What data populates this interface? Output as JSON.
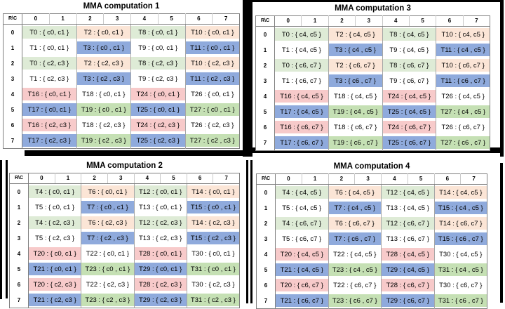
{
  "page": {
    "background": "#ffffff",
    "frame_color": "#000000"
  },
  "palette": {
    "green_light": "#DEEBD6",
    "peach": "#FBE5D6",
    "white": "#FFFFFF",
    "blue": "#8FAADC",
    "pink": "#F7CACA",
    "green": "#C5E0B4",
    "border_dark": "#7F7F7F",
    "border_mid": "#A6A6A6",
    "text": "#000000"
  },
  "grid": {
    "corner_label": "R\\C",
    "col_headers": [
      "0",
      "1",
      "2",
      "3",
      "4",
      "5",
      "6",
      "7"
    ],
    "row_headers": [
      "0",
      "1",
      "2",
      "3",
      "4",
      "5",
      "6",
      "7"
    ],
    "row_colors": [
      [
        "green_light",
        "peach",
        "green_light",
        "peach"
      ],
      [
        "white",
        "blue",
        "white",
        "blue"
      ],
      [
        "green_light",
        "peach",
        "green_light",
        "peach"
      ],
      [
        "white",
        "blue",
        "white",
        "blue"
      ],
      [
        "pink",
        "white",
        "pink",
        "white"
      ],
      [
        "blue",
        "green",
        "blue",
        "green"
      ],
      [
        "pink",
        "white",
        "pink",
        "white"
      ],
      [
        "blue",
        "green",
        "blue",
        "green"
      ]
    ]
  },
  "tables": [
    {
      "title": "MMA computation 1",
      "cells": [
        [
          "T0 : { c0, c1 }",
          "T2 : { c0, c1 }",
          "T8 : { c0, c1 }",
          "T10 : { c0, c1 }"
        ],
        [
          "T1 : { c0, c1 }",
          "T3 : { c0 , c1 }",
          "T9 : { c0, c1 }",
          "T11 : { c0 , c1 }"
        ],
        [
          "T0 : { c2, c3 }",
          "T2 : { c2, c3 }",
          "T8 : { c2, c3 }",
          "T10 : { c2, c3 }"
        ],
        [
          "T1 : { c2, c3 }",
          "T3 : { c2 , c3 }",
          "T9 : { c2, c3 }",
          "T11 : { c2 , c3 }"
        ],
        [
          "T16 : { c0, c1 }",
          "T18 : { c0, c1 }",
          "T24 : { c0, c1 }",
          "T26 : { c0, c1 }"
        ],
        [
          "T17 : { c0, c1 }",
          "T19 : { c0 , c1 }",
          "T25 : { c0, c1 }",
          "T27 : { c0 , c1 }"
        ],
        [
          "T16 : { c2, c3 }",
          "T18 : { c2, c3 }",
          "T24 : { c2, c3 }",
          "T26 : { c2, c3 }"
        ],
        [
          "T17 : { c2, c3 }",
          "T19 : { c2 , c3 }",
          "T25 : { c2, c3 }",
          "T27 : { c2 , c3 }"
        ]
      ]
    },
    {
      "title": "MMA computation 2",
      "cells": [
        [
          "T4 : { c0, c1 }",
          "T6 : { c0, c1 }",
          "T12 : { c0, c1 }",
          "T14 : { c0, c1 }"
        ],
        [
          "T5 : { c0, c1 }",
          "T7 : { c0 , c1 }",
          "T13 : { c0, c1 }",
          "T15 : { c0 , c1 }"
        ],
        [
          "T4 : { c2, c3 }",
          "T6 : { c2, c3 }",
          "T12 : { c2, c3 }",
          "T14 : { c2, c3 }"
        ],
        [
          "T5 : { c2, c3 }",
          "T7 : { c2 , c3 }",
          "T13 : { c2, c3 }",
          "T15 : { c2 , c3 }"
        ],
        [
          "T20 : { c0, c1 }",
          "T22 : { c0, c1 }",
          "T28 : { c0, c1 }",
          "T30 : { c0, c1 }"
        ],
        [
          "T21 : { c0, c1 }",
          "T23 : { c0 , c1 }",
          "T29 : { c0, c1 }",
          "T31 : { c0 , c1 }"
        ],
        [
          "T20 : { c2, c3 }",
          "T22 : { c2, c3 }",
          "T28 : { c2, c3 }",
          "T30 : { c2, c3 }"
        ],
        [
          "T21 : { c2, c3 }",
          "T23 : { c2 , c3 }",
          "T29 : { c2, c3 }",
          "T31 : { c2 , c3 }"
        ]
      ]
    },
    {
      "title": "MMA computation 3",
      "cells": [
        [
          "T0 : { c4, c5 }",
          "T2 : { c4, c5 }",
          "T8 : { c4, c5 }",
          "T10 : { c4, c5 }"
        ],
        [
          "T1 : { c4, c5 }",
          "T3 : { c4 , c5 }",
          "T9 : { c4, c5 }",
          "T11 : { c4 , c5 }"
        ],
        [
          "T0 : { c6, c7 }",
          "T2 : { c6, c7 }",
          "T8 : { c6, c7 }",
          "T10 : { c6, c7 }"
        ],
        [
          "T1 : { c6, c7 }",
          "T3 : { c6 , c7 }",
          "T9 : { c6, c7 }",
          "T11 : { c6 , c7 }"
        ],
        [
          "T16 : { c4, c5 }",
          "T18 : { c4, c5 }",
          "T24 : { c4, c5 }",
          "T26 : { c4, c5 }"
        ],
        [
          "T17 : { c4, c5 }",
          "T19 : { c4 , c5 }",
          "T25 : { c4, c5 }",
          "T27 : { c4 , c5 }"
        ],
        [
          "T16 : { c6, c7 }",
          "T18 : { c6, c7 }",
          "T24 : { c6, c7 }",
          "T26 : { c6, c7 }"
        ],
        [
          "T17 : { c6, c7 }",
          "T19 : { c6 , c7 }",
          "T25 : { c6, c7 }",
          "T27 : { c6 , c7 }"
        ]
      ]
    },
    {
      "title": "MMA computation 4",
      "cells": [
        [
          "T4 : { c4, c5 }",
          "T6 : { c4, c5 }",
          "T12 : { c4, c5 }",
          "T14 : { c4, c5 }"
        ],
        [
          "T5 : { c4, c5 }",
          "T7 : { c4 , c5 }",
          "T13 : { c4, c5 }",
          "T15 : { c4 , c5 }"
        ],
        [
          "T4 : { c6, c7 }",
          "T6 : { c6, c7 }",
          "T12 : { c6, c7 }",
          "T14 : { c6, c7 }"
        ],
        [
          "T5 : { c6, c7 }",
          "T7 : { c6 , c7 }",
          "T13 : { c6, c7 }",
          "T15 : { c6 , c7 }"
        ],
        [
          "T20 : { c4, c5 }",
          "T22 : { c4, c5 }",
          "T28 : { c4, c5 }",
          "T30 : { c4, c5 }"
        ],
        [
          "T21 : { c4, c5 }",
          "T23 : { c4 , c5 }",
          "T29 : { c4, c5 }",
          "T31 : { c4 , c5 }"
        ],
        [
          "T20 : { c6, c7 }",
          "T22 : { c6, c7 }",
          "T28 : { c6, c7 }",
          "T30 : { c6, c7 }"
        ],
        [
          "T21 : { c6, c7 }",
          "T23 : { c6 , c7 }",
          "T29 : { c6, c7 }",
          "T31 : { c6 , c7 }"
        ]
      ]
    }
  ]
}
